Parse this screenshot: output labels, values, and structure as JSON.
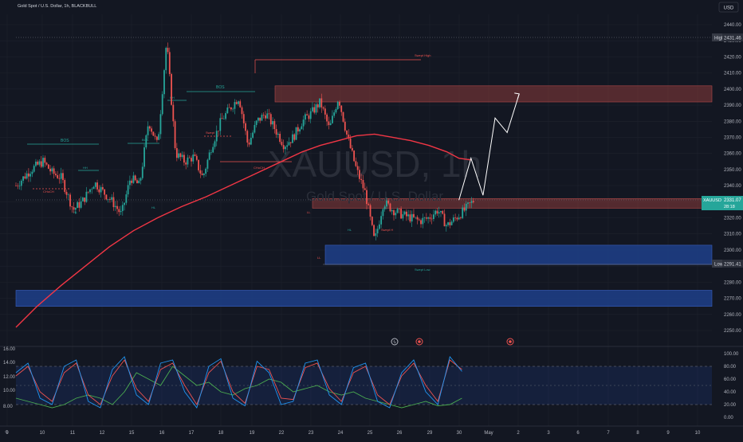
{
  "header": {
    "symbol_title": "Gold Spot / U.S. Dollar, 1h, BLACKBULL",
    "currency_button": "USD"
  },
  "watermark": {
    "ticker": "XAUUSD, 1h",
    "name": "Gold Spot / U.S. Dollar"
  },
  "colors": {
    "background": "#131722",
    "grid": "#1e222d",
    "up_candle": "#26a69a",
    "down_candle": "#ef5350",
    "moving_average": "#f23645",
    "supply_zone": "#8b3a3a",
    "demand_zone": "#1e3f8a",
    "current_price_badge": "#26a69a",
    "label_badge": "#363a45",
    "structure_green": "#26a69a",
    "structure_red": "#ef5350",
    "oscillator_fast": "#2196f3",
    "oscillator_slow": "#ef5350",
    "oscillator_green": "#4caf50"
  },
  "chart_data": [
    {
      "type": "candlestick",
      "title": "Gold Spot / U.S. Dollar, 1h, BLACKBULL",
      "x_labels": [
        "9",
        "10",
        "11",
        "12",
        "15",
        "16",
        "17",
        "18",
        "19",
        "22",
        "23",
        "24",
        "25",
        "26",
        "29",
        "30",
        "May",
        "2",
        "3",
        "6",
        "7",
        "8",
        "9",
        "10"
      ],
      "price_ticks": [
        2440,
        2430,
        2420,
        2410,
        2400,
        2390,
        2380,
        2370,
        2360,
        2350,
        2340,
        2330,
        2320,
        2310,
        2300,
        2290,
        2280,
        2270,
        2260,
        2250
      ],
      "ylim": [
        2250,
        2443
      ],
      "price_path_days": [
        8.9,
        9.4,
        9.8,
        10.1,
        10.4,
        10.8,
        11.1,
        11.5,
        11.8,
        12.1,
        12.4,
        12.7,
        13.0,
        13.3,
        13.6,
        13.9,
        14.2,
        14.5,
        14.8,
        15.1,
        15.4,
        15.7,
        16.0,
        16.3,
        16.6,
        16.9,
        17.2,
        17.5,
        17.8,
        18.1,
        18.4,
        18.7,
        19.0,
        19.3,
        19.6,
        19.9,
        20.2,
        20.5,
        20.8,
        21.1,
        21.4,
        21.7,
        22.0,
        22.3,
        22.6,
        22.9,
        23.2,
        23.5,
        23.8,
        24.1
      ],
      "price_path_values": [
        2340,
        2350,
        2355,
        2348,
        2345,
        2325,
        2330,
        2342,
        2336,
        2330,
        2322,
        2345,
        2340,
        2380,
        2365,
        2430,
        2360,
        2355,
        2358,
        2345,
        2365,
        2380,
        2388,
        2395,
        2365,
        2380,
        2385,
        2375,
        2365,
        2370,
        2380,
        2385,
        2392,
        2375,
        2395,
        2370,
        2350,
        2335,
        2305,
        2330,
        2325,
        2322,
        2320,
        2318,
        2320,
        2325,
        2315,
        2320,
        2325,
        2331
      ],
      "moving_average_days": [
        8.9,
        9.6,
        10.4,
        11.2,
        12.0,
        12.8,
        13.6,
        14.4,
        15.2,
        16.0,
        16.8,
        17.6,
        18.4,
        19.0,
        19.6,
        20.2,
        20.8,
        21.4,
        22.0,
        22.6,
        23.2,
        23.6,
        24.0
      ],
      "moving_average_values": [
        2252,
        2265,
        2278,
        2290,
        2302,
        2312,
        2320,
        2327,
        2333,
        2340,
        2347,
        2354,
        2361,
        2365,
        2368,
        2371,
        2372,
        2370,
        2368,
        2365,
        2361,
        2357,
        2356
      ],
      "supply_zones": [
        [
          2392,
          2402
        ],
        [
          2326,
          2332
        ]
      ],
      "demand_zones": [
        [
          2291,
          2303
        ],
        [
          2265,
          2275
        ]
      ],
      "projection_days": [
        23.6,
        24.0,
        24.4,
        24.8,
        25.2,
        25.6
      ],
      "projection_values": [
        2331,
        2357,
        2334,
        2382,
        2373,
        2397
      ],
      "high": {
        "label": "High",
        "value": "2431.46"
      },
      "low": {
        "label": "Low",
        "value": "2291.41"
      },
      "current_price": {
        "label": "XAUUSD",
        "value": "2331.07",
        "timer": "28:18"
      }
    },
    {
      "type": "line",
      "name": "oscillator",
      "left_axis_ticks": [
        "16.00",
        "14.00",
        "12.00",
        "10.00",
        "8.00"
      ],
      "right_axis_ticks": [
        "100.00",
        "80.00",
        "60.00",
        "40.00",
        "20.00",
        "0.00"
      ],
      "ylim": [
        0,
        100
      ],
      "band": [
        20,
        80
      ],
      "midline": 50,
      "days": [
        8.9,
        9.3,
        9.7,
        10.1,
        10.5,
        10.9,
        11.3,
        11.7,
        12.1,
        12.5,
        12.9,
        13.3,
        13.7,
        14.1,
        14.5,
        14.9,
        15.3,
        15.7,
        16.1,
        16.5,
        16.9,
        17.3,
        17.7,
        18.1,
        18.5,
        18.9,
        19.3,
        19.7,
        20.1,
        20.5,
        20.9,
        21.3,
        21.7,
        22.1,
        22.5,
        22.9,
        23.3,
        23.7
      ],
      "fast_values": [
        70,
        85,
        30,
        20,
        80,
        90,
        25,
        15,
        75,
        95,
        35,
        20,
        85,
        90,
        40,
        15,
        80,
        92,
        30,
        18,
        88,
        70,
        20,
        25,
        85,
        90,
        35,
        20,
        78,
        85,
        25,
        15,
        70,
        90,
        40,
        20,
        95,
        72
      ],
      "slow_values": [
        65,
        80,
        40,
        25,
        70,
        85,
        35,
        20,
        65,
        90,
        45,
        25,
        75,
        85,
        50,
        20,
        70,
        88,
        40,
        22,
        80,
        75,
        30,
        28,
        78,
        85,
        45,
        25,
        70,
        80,
        35,
        20,
        65,
        85,
        50,
        25,
        90,
        75
      ],
      "green_values": [
        30,
        25,
        20,
        15,
        20,
        30,
        35,
        30,
        20,
        40,
        70,
        60,
        50,
        80,
        65,
        50,
        55,
        40,
        35,
        45,
        50,
        60,
        55,
        40,
        45,
        50,
        40,
        35,
        40,
        30,
        25,
        20,
        15,
        20,
        25,
        18,
        20,
        30
      ]
    }
  ],
  "annotations": {
    "bos": [
      "BOS",
      "BOS",
      "BOS"
    ],
    "small_labels": [
      "CHoCH",
      "HL",
      "HH",
      "HL",
      "HH",
      "CHoCH",
      "LL",
      "Swept",
      "HL",
      "LL",
      "Swept H",
      "Swept Low",
      "Swept High"
    ]
  },
  "event_icons": [
    "lightning-event-icon",
    "earnings-event-icon",
    "earnings-event-icon"
  ]
}
